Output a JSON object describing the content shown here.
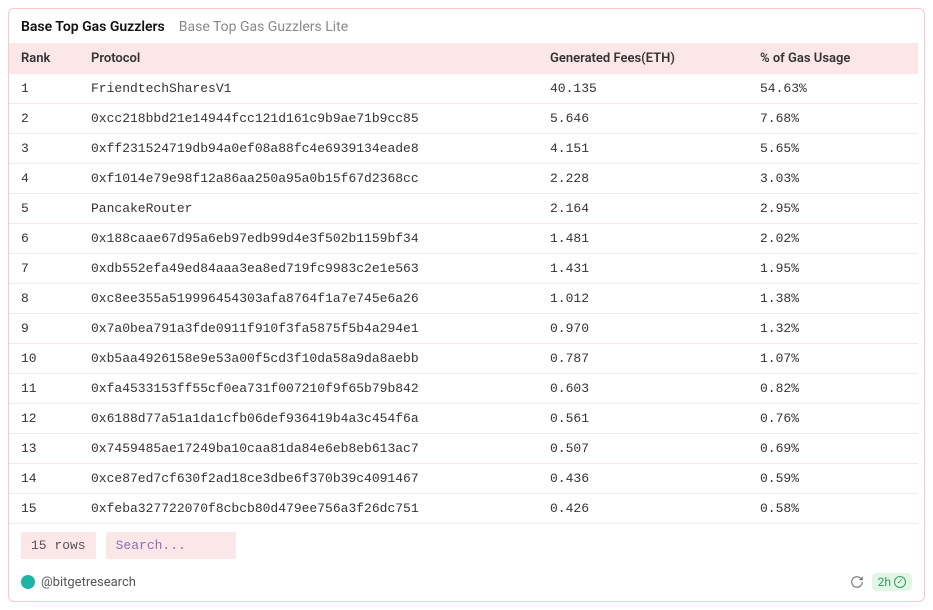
{
  "tabs": {
    "active": "Base Top Gas Guzzlers",
    "inactive": "Base Top Gas Guzzlers Lite"
  },
  "columns": {
    "rank": "Rank",
    "protocol": "Protocol",
    "fees": "Generated Fees(ETH)",
    "pct": "% of Gas Usage"
  },
  "rows": [
    {
      "rank": "1",
      "protocol": "FriendtechSharesV1",
      "fees": "40.135",
      "pct": "54.63%"
    },
    {
      "rank": "2",
      "protocol": "0xcc218bbd21e14944fcc121d161c9b9ae71b9cc85",
      "fees": "5.646",
      "pct": "7.68%"
    },
    {
      "rank": "3",
      "protocol": "0xff231524719db94a0ef08a88fc4e6939134eade8",
      "fees": "4.151",
      "pct": "5.65%"
    },
    {
      "rank": "4",
      "protocol": "0xf1014e79e98f12a86aa250a95a0b15f67d2368cc",
      "fees": "2.228",
      "pct": "3.03%"
    },
    {
      "rank": "5",
      "protocol": "PancakeRouter",
      "fees": "2.164",
      "pct": "2.95%"
    },
    {
      "rank": "6",
      "protocol": "0x188caae67d95a6eb97edb99d4e3f502b1159bf34",
      "fees": "1.481",
      "pct": "2.02%"
    },
    {
      "rank": "7",
      "protocol": "0xdb552efa49ed84aaa3ea8ed719fc9983c2e1e563",
      "fees": "1.431",
      "pct": "1.95%"
    },
    {
      "rank": "8",
      "protocol": "0xc8ee355a519996454303afa8764f1a7e745e6a26",
      "fees": "1.012",
      "pct": "1.38%"
    },
    {
      "rank": "9",
      "protocol": "0x7a0bea791a3fde0911f910f3fa5875f5b4a294e1",
      "fees": "0.970",
      "pct": "1.32%"
    },
    {
      "rank": "10",
      "protocol": "0xb5aa4926158e9e53a00f5cd3f10da58a9da8aebb",
      "fees": "0.787",
      "pct": "1.07%"
    },
    {
      "rank": "11",
      "protocol": "0xfa4533153ff55cf0ea731f007210f9f65b79b842",
      "fees": "0.603",
      "pct": "0.82%"
    },
    {
      "rank": "12",
      "protocol": "0x6188d77a51a1da1cfb06def936419b4a3c454f6a",
      "fees": "0.561",
      "pct": "0.76%"
    },
    {
      "rank": "13",
      "protocol": "0x7459485ae17249ba10caa81da84e6eb8eb613ac7",
      "fees": "0.507",
      "pct": "0.69%"
    },
    {
      "rank": "14",
      "protocol": "0xce87ed7cf630f2ad18ce3dbe6f370b39c4091467",
      "fees": "0.436",
      "pct": "0.59%"
    },
    {
      "rank": "15",
      "protocol": "0xfeba327722070f8cbcb80d479ee756a3f26dc751",
      "fees": "0.426",
      "pct": "0.58%"
    }
  ],
  "footer": {
    "row_count": "15 rows",
    "search_placeholder": "Search..."
  },
  "attribution": {
    "handle": "@bitgetresearch",
    "time_badge": "2h"
  },
  "style": {
    "border_color": "#f7c9cc",
    "header_bg": "#fbe7e8",
    "row_border": "#f5e8e9",
    "badge_bg": "#e2f5e7",
    "badge_fg": "#2f9e5c",
    "avatar_color": "#1cb5a3"
  }
}
